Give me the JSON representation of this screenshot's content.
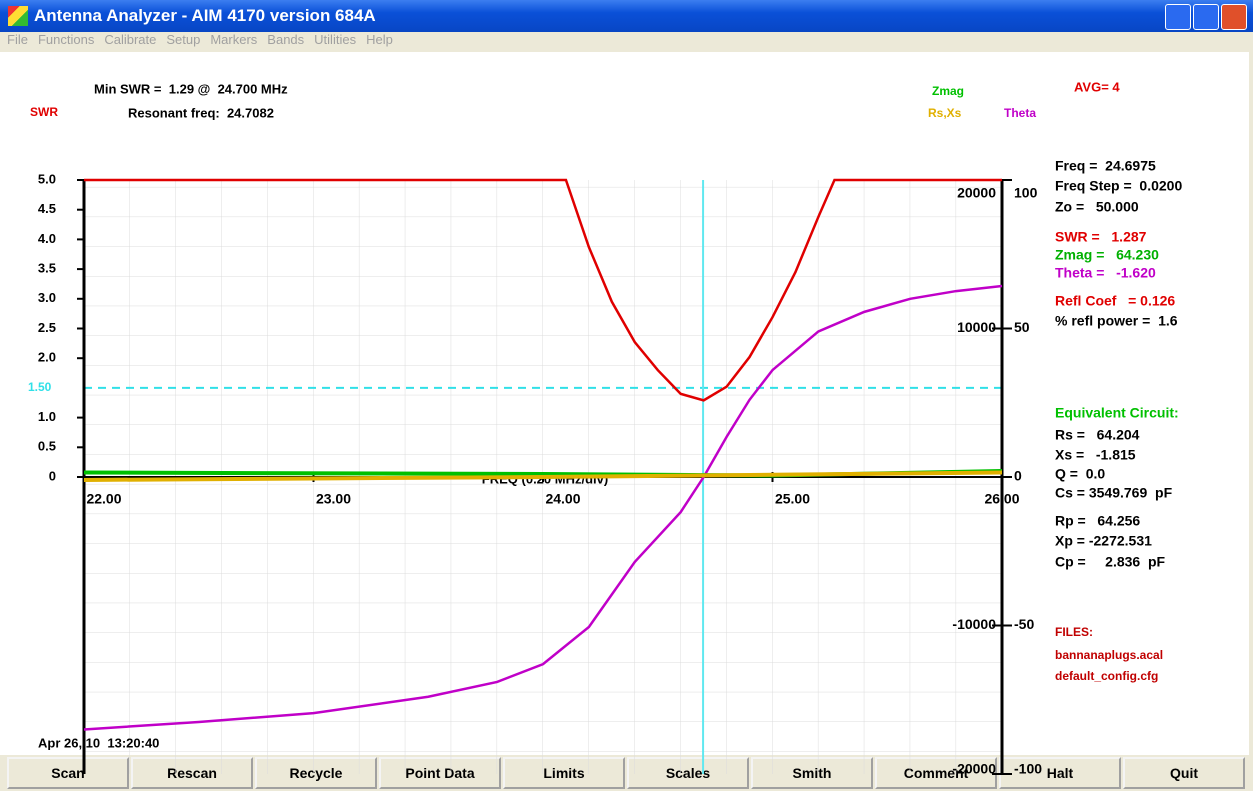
{
  "window": {
    "title": "Antenna Analyzer -   AIM 4170 version 684A"
  },
  "menu": [
    "File",
    "Functions",
    "Calibrate",
    "Setup",
    "Markers",
    "Bands",
    "Utilities",
    "Help"
  ],
  "header": {
    "min_swr": "Min SWR =  1.29 @  24.700 MHz",
    "resonant": "Resonant freq:  24.7082",
    "avg": "AVG= 4"
  },
  "chart_data": {
    "type": "line",
    "xlabel": "FREQ (0.20 MHz/div)",
    "xlim": [
      22,
      26
    ],
    "xticks": [
      {
        "value": 22,
        "label": "22.00"
      },
      {
        "value": 23,
        "label": "23.00"
      },
      {
        "value": 24,
        "label": "24.00"
      },
      {
        "value": 25,
        "label": "25.00"
      },
      {
        "value": 26,
        "label": "26.00"
      }
    ],
    "ylabel": "SWR",
    "ylim": [
      0,
      5
    ],
    "yticks": [
      {
        "value": 5,
        "label": "5.0"
      },
      4.5,
      {
        "value": 4,
        "label": "4.0"
      },
      3.5,
      {
        "value": 3,
        "label": "3.0"
      },
      2.5,
      {
        "value": 2,
        "label": "2.0"
      },
      {
        "value": 1,
        "label": "1.0"
      },
      0.5,
      0
    ],
    "y2lim": [
      -100,
      100
    ],
    "y2ticks": [
      100,
      50,
      0,
      -50,
      -100
    ],
    "y3lim": [
      -20000,
      20000
    ],
    "y3ticks": [
      20000,
      10000,
      -10000,
      -20000
    ],
    "reference_line": {
      "value": 1.5,
      "label": "1.50",
      "color": "#30e0e8"
    },
    "cursor": {
      "value": 24.6975,
      "color": "#60e8f0"
    },
    "grid": true,
    "series": [
      {
        "name": "SWR",
        "color": "#e00000",
        "axis": "y",
        "x": [
          22,
          24.1,
          24.2,
          24.3,
          24.4,
          24.5,
          24.6,
          24.7,
          24.8,
          24.9,
          25.0,
          25.1,
          25.2,
          25.27,
          26
        ],
        "values": [
          5,
          5,
          3.87,
          2.95,
          2.27,
          1.8,
          1.4,
          1.29,
          1.52,
          2.02,
          2.69,
          3.45,
          4.38,
          5,
          5
        ]
      },
      {
        "name": "Theta",
        "color": "#c000c8",
        "axis": "y2",
        "x": [
          22,
          22.5,
          23,
          23.5,
          23.8,
          24.0,
          24.2,
          24.4,
          24.6,
          24.7,
          24.8,
          24.9,
          25.0,
          25.2,
          25.4,
          25.6,
          25.8,
          26
        ],
        "values": [
          -85,
          -82.5,
          -79.5,
          -74,
          -69,
          -63,
          -50.5,
          -28.6,
          -11.8,
          0,
          13.5,
          26,
          36,
          49,
          55.6,
          60,
          62.6,
          64.3
        ]
      },
      {
        "name": "Zmag",
        "color": "#00c000",
        "axis": "y3",
        "x": [
          22,
          24,
          25,
          26
        ],
        "values": [
          300,
          200,
          100,
          400
        ]
      },
      {
        "name": "Rs,Xs",
        "color": "#e0b000",
        "axis": "y3",
        "x": [
          22,
          23,
          24,
          25,
          26
        ],
        "values": [
          -200,
          -100,
          0,
          150,
          300
        ]
      }
    ]
  },
  "readout": {
    "freq": "Freq =  24.6975",
    "freq_step": "Freq Step =  0.0200",
    "zo": "Zo =   50.000",
    "swr": "SWR =   1.287",
    "zmag": "Zmag =   64.230",
    "theta": "Theta =   -1.620",
    "refl_coef": "Refl Coef   = 0.126",
    "refl_power": "% refl power =  1.6",
    "equiv_title": "Equivalent Circuit:",
    "rs": "Rs =   64.204",
    "xs": "Xs =   -1.815",
    "q": "Q =  0.0",
    "cs": "Cs = 3549.769  pF",
    "rp": "Rp =   64.256",
    "xp": "Xp = -2272.531",
    "cp": "Cp =     2.836  pF",
    "files_title": "FILES:",
    "file1": "bannanaplugs.acal",
    "file2": "default_config.cfg"
  },
  "timestamp": "Apr 26, 10  13:20:40",
  "buttons": [
    "Scan",
    "Rescan",
    "Recycle",
    "Point Data",
    "Limits",
    "Scales",
    "Smith",
    "Comment",
    "Halt",
    "Quit"
  ]
}
